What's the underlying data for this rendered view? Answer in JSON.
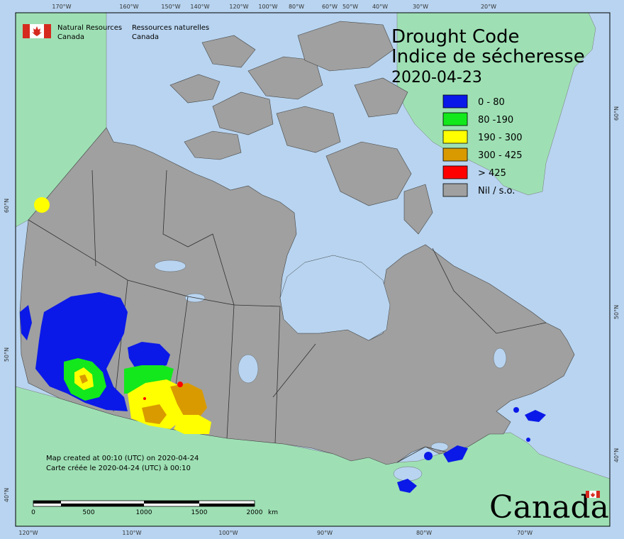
{
  "title": {
    "line1": "Drought Code",
    "line2": "Indice de sécheresse",
    "date": "2020-04-23"
  },
  "agency": {
    "en_line1": "Natural Resources",
    "en_line2": "Canada",
    "fr_line1": "Ressources naturelles",
    "fr_line2": "Canada"
  },
  "wordmark": "Canada",
  "credit": {
    "en": "Map created at 00:10 (UTC) on 2020-04-24",
    "fr": "Carte créée le 2020-04-24 (UTC) à 00:10"
  },
  "legend": [
    {
      "label": "0 - 80",
      "color": "#0a19e8"
    },
    {
      "label": "80 -190",
      "color": "#12e81c"
    },
    {
      "label": "190 - 300",
      "color": "#ffff00"
    },
    {
      "label": "300 - 425",
      "color": "#d99a00"
    },
    {
      "label": "> 425",
      "color": "#ff0000"
    },
    {
      "label": "Nil / s.o.",
      "color": "#a0a0a0"
    }
  ],
  "scale": {
    "ticks": [
      "0",
      "500",
      "1000",
      "1500",
      "2000"
    ],
    "unit": "km"
  },
  "graticule": {
    "top": [
      "170°W",
      "160°W",
      "150°W",
      "140°W",
      "120°W",
      "100°W",
      "80°W",
      "60°W",
      "50°W",
      "40°W",
      "30°W",
      "20°W"
    ],
    "bottom": [
      "120°W",
      "110°W",
      "100°W",
      "90°W",
      "80°W",
      "70°W"
    ],
    "left": [
      "60°N",
      "50°N",
      "40°N"
    ],
    "right": [
      "60°N",
      "50°N",
      "40°N"
    ]
  },
  "colors": {
    "ocean": "#b8d4f0",
    "land_other": "#9ee0b4",
    "canada": "#a0a0a0",
    "border": "#303030"
  }
}
